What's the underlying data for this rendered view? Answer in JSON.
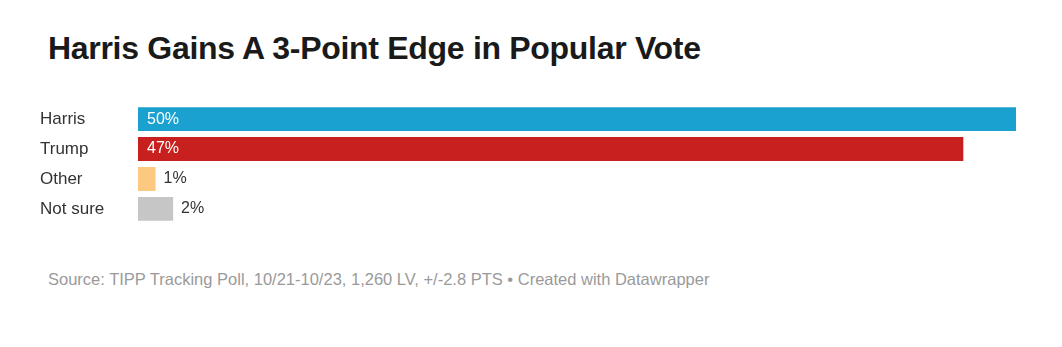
{
  "chart_data": {
    "type": "bar",
    "orientation": "horizontal",
    "title": "Harris Gains A 3-Point Edge in Popular Vote",
    "source": "Source: TIPP Tracking Poll, 10/21-10/23, 1,260 LV, +/-2.8 PTS • Created with Datawrapper",
    "categories": [
      "Harris",
      "Trump",
      "Other",
      "Not sure"
    ],
    "values": [
      50,
      47,
      1,
      2
    ],
    "value_labels": [
      "50%",
      "47%",
      "1%",
      "2%"
    ],
    "colors": [
      "#1aa1d0",
      "#c8201f",
      "#fdc980",
      "#c6c6c6"
    ],
    "xlim": [
      0,
      50
    ],
    "grid": false,
    "data_labels": true,
    "tick_labels": "y"
  }
}
